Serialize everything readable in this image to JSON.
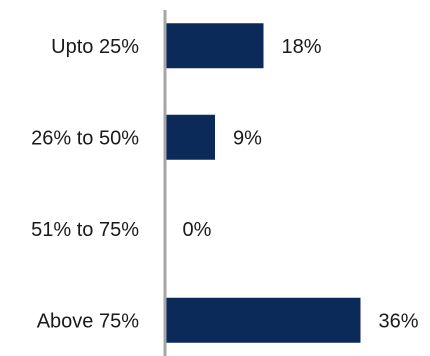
{
  "chart_data": {
    "type": "bar",
    "orientation": "horizontal",
    "categories": [
      "Upto 25%",
      "26% to 50%",
      "51% to 75%",
      "Above 75%"
    ],
    "values": [
      18,
      9,
      0,
      36
    ],
    "value_labels": [
      "18%",
      "9%",
      "0%",
      "36%"
    ],
    "title": "",
    "xlabel": "",
    "ylabel": "",
    "xlim": [
      0,
      36
    ],
    "grid": false,
    "legend": "none",
    "bar_color": "#0b2a5a",
    "axis_color": "#a6a6a6"
  }
}
